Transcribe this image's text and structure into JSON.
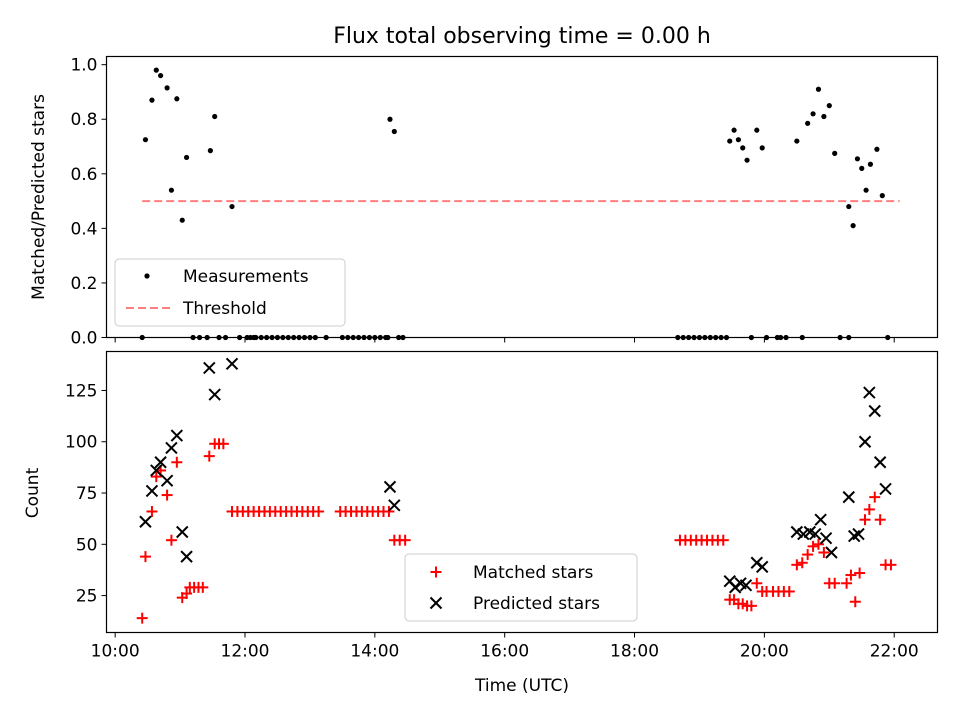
{
  "figure": {
    "title": "Flux total observing time = 0.00 h"
  },
  "chart_data": [
    {
      "type": "scatter",
      "panel": "top",
      "ylabel": "Matched/Predicted stars",
      "xlabel": "",
      "xlim": [
        "09:52",
        "22:40"
      ],
      "ylim": [
        0,
        1.03
      ],
      "yticks": [
        0.0,
        0.2,
        0.4,
        0.6,
        0.8,
        1.0
      ],
      "ytick_labels": [
        "0.0",
        "0.2",
        "0.4",
        "0.6",
        "0.8",
        "1.0"
      ],
      "legend_position": "lower-left",
      "series": [
        {
          "name": "Measurements",
          "marker": "dot",
          "color": "#000000",
          "points": [
            [
              "10:25",
              0.0
            ],
            [
              "10:28",
              0.725
            ],
            [
              "10:34",
              0.87
            ],
            [
              "10:38",
              0.98
            ],
            [
              "10:42",
              0.96
            ],
            [
              "10:48",
              0.915
            ],
            [
              "10:52",
              0.54
            ],
            [
              "10:57",
              0.875
            ],
            [
              "11:02",
              0.43
            ],
            [
              "11:06",
              0.66
            ],
            [
              "11:12",
              0.0
            ],
            [
              "11:18",
              0.0
            ],
            [
              "11:25",
              0.0
            ],
            [
              "11:28",
              0.685
            ],
            [
              "11:32",
              0.81
            ],
            [
              "11:36",
              0.0
            ],
            [
              "11:42",
              0.0
            ],
            [
              "11:48",
              0.48
            ],
            [
              "11:55",
              0.0
            ],
            [
              "12:02",
              0.0
            ],
            [
              "12:05",
              0.0
            ],
            [
              "12:10",
              0.0
            ],
            [
              "12:15",
              0.0
            ],
            [
              "12:20",
              0.0
            ],
            [
              "12:25",
              0.0
            ],
            [
              "12:30",
              0.0
            ],
            [
              "12:35",
              0.0
            ],
            [
              "12:40",
              0.0
            ],
            [
              "12:45",
              0.0
            ],
            [
              "12:50",
              0.0
            ],
            [
              "12:55",
              0.0
            ],
            [
              "13:00",
              0.0
            ],
            [
              "13:05",
              0.0
            ],
            [
              "13:15",
              0.0
            ],
            [
              "13:30",
              0.0
            ],
            [
              "13:35",
              0.0
            ],
            [
              "13:40",
              0.0
            ],
            [
              "13:45",
              0.0
            ],
            [
              "13:50",
              0.0
            ],
            [
              "13:55",
              0.0
            ],
            [
              "14:00",
              0.0
            ],
            [
              "14:05",
              0.0
            ],
            [
              "14:10",
              0.0
            ],
            [
              "14:12",
              0.0
            ],
            [
              "14:14",
              0.8
            ],
            [
              "14:18",
              0.755
            ],
            [
              "14:22",
              0.0
            ],
            [
              "14:26",
              0.0
            ],
            [
              "18:40",
              0.0
            ],
            [
              "18:45",
              0.0
            ],
            [
              "18:50",
              0.0
            ],
            [
              "18:55",
              0.0
            ],
            [
              "19:00",
              0.0
            ],
            [
              "19:05",
              0.0
            ],
            [
              "19:10",
              0.0
            ],
            [
              "19:15",
              0.0
            ],
            [
              "19:20",
              0.0
            ],
            [
              "19:25",
              0.0
            ],
            [
              "19:28",
              0.72
            ],
            [
              "19:32",
              0.76
            ],
            [
              "19:36",
              0.725
            ],
            [
              "19:40",
              0.695
            ],
            [
              "19:44",
              0.65
            ],
            [
              "19:48",
              0.0
            ],
            [
              "19:53",
              0.76
            ],
            [
              "19:58",
              0.695
            ],
            [
              "20:02",
              0.0
            ],
            [
              "20:12",
              0.0
            ],
            [
              "20:15",
              0.0
            ],
            [
              "20:20",
              0.0
            ],
            [
              "20:30",
              0.72
            ],
            [
              "20:35",
              0.0
            ],
            [
              "20:40",
              0.785
            ],
            [
              "20:45",
              0.82
            ],
            [
              "20:50",
              0.91
            ],
            [
              "20:55",
              0.81
            ],
            [
              "21:00",
              0.85
            ],
            [
              "21:05",
              0.675
            ],
            [
              "21:10",
              0.0
            ],
            [
              "21:18",
              0.48
            ],
            [
              "21:22",
              0.41
            ],
            [
              "21:26",
              0.655
            ],
            [
              "21:30",
              0.62
            ],
            [
              "21:34",
              0.54
            ],
            [
              "21:38",
              0.635
            ],
            [
              "21:44",
              0.69
            ],
            [
              "21:49",
              0.52
            ],
            [
              "21:54",
              0.0
            ],
            [
              "21:18",
              0.0
            ],
            [
              "12:08",
              0.0
            ]
          ]
        },
        {
          "name": "Threshold",
          "line_style": "dashed",
          "color": "#ff7f7f",
          "points": [
            [
              "10:25",
              0.5
            ],
            [
              "22:05",
              0.5
            ]
          ]
        }
      ]
    },
    {
      "type": "scatter",
      "panel": "bottom",
      "ylabel": "Count",
      "xlabel": "Time (UTC)",
      "xlim": [
        "09:52",
        "22:40"
      ],
      "ylim": [
        7,
        144
      ],
      "yticks": [
        25,
        50,
        75,
        100,
        125
      ],
      "ytick_labels": [
        "25",
        "50",
        "75",
        "100",
        "125"
      ],
      "xticks": [
        "10:00",
        "12:00",
        "14:00",
        "16:00",
        "18:00",
        "20:00",
        "22:00"
      ],
      "xtick_labels": [
        "10:00",
        "12:00",
        "14:00",
        "16:00",
        "18:00",
        "20:00",
        "22:00"
      ],
      "legend_position": "lower-center",
      "series": [
        {
          "name": "Matched stars",
          "marker": "plus",
          "color": "#ff0000",
          "points": [
            [
              "10:25",
              14
            ],
            [
              "10:28",
              44
            ],
            [
              "10:34",
              66
            ],
            [
              "10:38",
              83
            ],
            [
              "10:42",
              86
            ],
            [
              "10:48",
              74
            ],
            [
              "10:52",
              52
            ],
            [
              "10:57",
              90
            ],
            [
              "11:02",
              24
            ],
            [
              "11:06",
              26
            ],
            [
              "11:09",
              29
            ],
            [
              "11:13",
              29
            ],
            [
              "11:17",
              29
            ],
            [
              "11:21",
              29
            ],
            [
              "11:27",
              93
            ],
            [
              "11:32",
              99
            ],
            [
              "11:36",
              99
            ],
            [
              "11:40",
              99
            ],
            [
              "11:48",
              66
            ],
            [
              "11:53",
              66
            ],
            [
              "11:58",
              66
            ],
            [
              "12:03",
              66
            ],
            [
              "12:08",
              66
            ],
            [
              "12:13",
              66
            ],
            [
              "12:18",
              66
            ],
            [
              "12:23",
              66
            ],
            [
              "12:28",
              66
            ],
            [
              "12:33",
              66
            ],
            [
              "12:38",
              66
            ],
            [
              "12:43",
              66
            ],
            [
              "12:48",
              66
            ],
            [
              "12:53",
              66
            ],
            [
              "12:58",
              66
            ],
            [
              "13:03",
              66
            ],
            [
              "13:08",
              66
            ],
            [
              "13:28",
              66
            ],
            [
              "13:33",
              66
            ],
            [
              "13:38",
              66
            ],
            [
              "13:43",
              66
            ],
            [
              "13:48",
              66
            ],
            [
              "13:53",
              66
            ],
            [
              "13:58",
              66
            ],
            [
              "14:03",
              66
            ],
            [
              "14:08",
              66
            ],
            [
              "14:13",
              66
            ],
            [
              "14:18",
              52
            ],
            [
              "14:23",
              52
            ],
            [
              "14:28",
              52
            ],
            [
              "18:42",
              52
            ],
            [
              "18:47",
              52
            ],
            [
              "18:52",
              52
            ],
            [
              "18:57",
              52
            ],
            [
              "19:02",
              52
            ],
            [
              "19:07",
              52
            ],
            [
              "19:12",
              52
            ],
            [
              "19:17",
              52
            ],
            [
              "19:22",
              52
            ],
            [
              "19:28",
              23
            ],
            [
              "19:32",
              23
            ],
            [
              "19:36",
              21
            ],
            [
              "19:40",
              21
            ],
            [
              "19:44",
              20
            ],
            [
              "19:48",
              20
            ],
            [
              "19:53",
              31
            ],
            [
              "19:58",
              27
            ],
            [
              "20:02",
              27
            ],
            [
              "20:08",
              27
            ],
            [
              "20:13",
              27
            ],
            [
              "20:18",
              27
            ],
            [
              "20:23",
              27
            ],
            [
              "20:30",
              40
            ],
            [
              "20:35",
              41
            ],
            [
              "20:40",
              45
            ],
            [
              "20:45",
              49
            ],
            [
              "20:50",
              50
            ],
            [
              "20:55",
              46
            ],
            [
              "21:00",
              31
            ],
            [
              "21:05",
              31
            ],
            [
              "21:16",
              31
            ],
            [
              "21:20",
              35
            ],
            [
              "21:24",
              22
            ],
            [
              "21:28",
              36
            ],
            [
              "21:33",
              62
            ],
            [
              "21:37",
              67
            ],
            [
              "21:42",
              73
            ],
            [
              "21:47",
              62
            ],
            [
              "21:52",
              40
            ],
            [
              "21:57",
              40
            ]
          ]
        },
        {
          "name": "Predicted stars",
          "marker": "x",
          "color": "#000000",
          "points": [
            [
              "10:28",
              61
            ],
            [
              "10:34",
              76
            ],
            [
              "10:38",
              86
            ],
            [
              "10:42",
              90
            ],
            [
              "10:48",
              81
            ],
            [
              "10:52",
              97
            ],
            [
              "10:57",
              103
            ],
            [
              "11:02",
              56
            ],
            [
              "11:06",
              44
            ],
            [
              "11:27",
              136
            ],
            [
              "11:32",
              123
            ],
            [
              "11:48",
              138
            ],
            [
              "14:14",
              78
            ],
            [
              "14:18",
              69
            ],
            [
              "19:28",
              32
            ],
            [
              "19:33",
              29
            ],
            [
              "19:38",
              31
            ],
            [
              "19:43",
              30
            ],
            [
              "19:53",
              41
            ],
            [
              "19:58",
              39
            ],
            [
              "20:30",
              56
            ],
            [
              "20:36",
              55
            ],
            [
              "20:42",
              56
            ],
            [
              "20:47",
              55
            ],
            [
              "20:52",
              62
            ],
            [
              "20:57",
              53
            ],
            [
              "21:02",
              46
            ],
            [
              "21:18",
              73
            ],
            [
              "21:23",
              54
            ],
            [
              "21:27",
              55
            ],
            [
              "21:33",
              100
            ],
            [
              "21:37",
              124
            ],
            [
              "21:42",
              115
            ],
            [
              "21:47",
              90
            ],
            [
              "21:52",
              77
            ]
          ]
        }
      ]
    }
  ]
}
